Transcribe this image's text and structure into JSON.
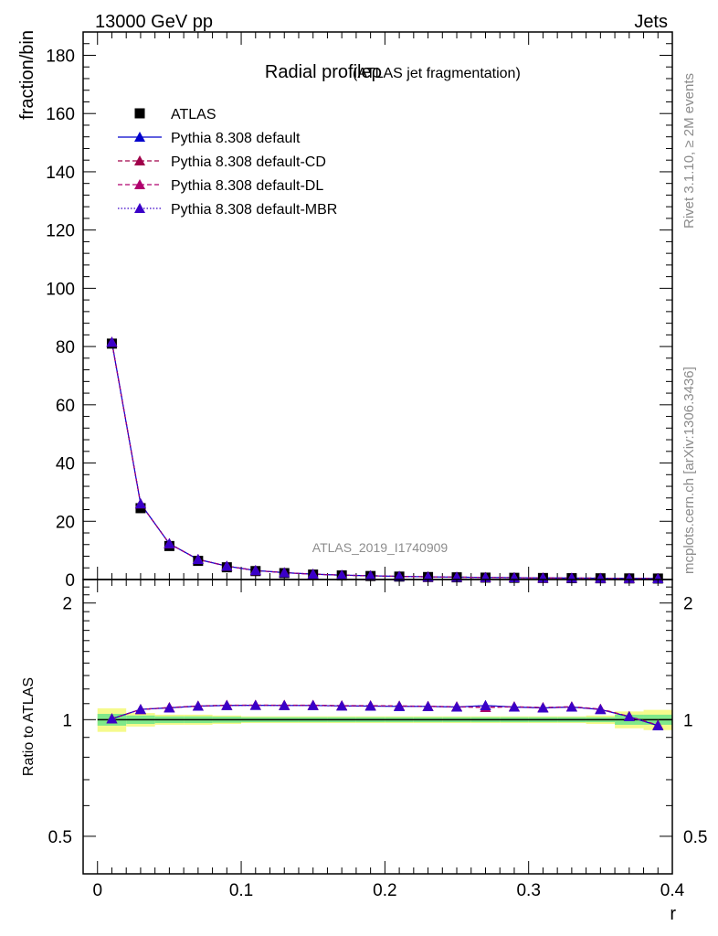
{
  "header": {
    "left": "13000 GeV pp",
    "right": "Jets"
  },
  "side": {
    "rivet": "Rivet 3.1.10, ≥ 2M events",
    "mcplots": "mcplots.cern.ch [arXiv:1306.3436]"
  },
  "watermark": "ATLAS_2019_I1740909",
  "colors": {
    "data": "#000000",
    "default": "#0000cc",
    "cd": "#a0004a",
    "dl": "#b0006e",
    "mbr": "#3a00c8",
    "band_inner": "#7fe88a",
    "band_outer": "#f5fa8c"
  },
  "chart_data": [
    {
      "type": "line",
      "title": "Radial profileρ",
      "subtitle": "(ATLAS jet fragmentation)",
      "ylabel": "fraction/bin",
      "xlim": [
        -0.01,
        0.4
      ],
      "ylim": [
        0,
        188
      ],
      "yticks": [
        0,
        20,
        40,
        60,
        80,
        100,
        120,
        140,
        160,
        180
      ],
      "x": [
        0.01,
        0.03,
        0.05,
        0.07,
        0.09,
        0.11,
        0.13,
        0.15,
        0.17,
        0.19,
        0.21,
        0.23,
        0.25,
        0.27,
        0.29,
        0.31,
        0.33,
        0.35,
        0.37,
        0.39
      ],
      "series": [
        {
          "name": "ATLAS",
          "values": [
            81.0,
            24.5,
            11.5,
            6.4,
            4.2,
            2.9,
            2.2,
            1.7,
            1.4,
            1.2,
            1.0,
            0.85,
            0.75,
            0.65,
            0.58,
            0.52,
            0.46,
            0.42,
            0.38,
            0.34
          ]
        },
        {
          "name": "Pythia 8.308 default",
          "values": [
            81.5,
            26.0,
            12.3,
            6.9,
            4.6,
            3.1,
            2.35,
            1.85,
            1.5,
            1.3,
            1.08,
            0.92,
            0.81,
            0.71,
            0.63,
            0.56,
            0.5,
            0.45,
            0.39,
            0.33
          ]
        },
        {
          "name": "Pythia 8.308 default-CD",
          "values": [
            81.5,
            26.0,
            12.3,
            6.9,
            4.6,
            3.1,
            2.35,
            1.85,
            1.5,
            1.3,
            1.08,
            0.92,
            0.81,
            0.71,
            0.63,
            0.56,
            0.5,
            0.45,
            0.39,
            0.33
          ]
        },
        {
          "name": "Pythia 8.308 default-DL",
          "values": [
            81.5,
            26.0,
            12.3,
            6.9,
            4.6,
            3.1,
            2.35,
            1.85,
            1.5,
            1.3,
            1.08,
            0.92,
            0.81,
            0.71,
            0.63,
            0.56,
            0.5,
            0.45,
            0.39,
            0.33
          ]
        },
        {
          "name": "Pythia 8.308 default-MBR",
          "values": [
            81.5,
            26.0,
            12.3,
            6.9,
            4.6,
            3.1,
            2.35,
            1.85,
            1.5,
            1.3,
            1.08,
            0.92,
            0.81,
            0.71,
            0.63,
            0.56,
            0.5,
            0.45,
            0.39,
            0.33
          ]
        }
      ]
    },
    {
      "type": "line",
      "ylabel": "Ratio to ATLAS",
      "xlabel": "r",
      "xlim": [
        -0.01,
        0.4
      ],
      "ylim": [
        0.4,
        2.3
      ],
      "yscale": "log",
      "yticks": [
        0.5,
        1,
        2
      ],
      "xticks": [
        0,
        0.1,
        0.2,
        0.3,
        0.4
      ],
      "x": [
        0.01,
        0.03,
        0.05,
        0.07,
        0.09,
        0.11,
        0.13,
        0.15,
        0.17,
        0.19,
        0.21,
        0.23,
        0.25,
        0.27,
        0.29,
        0.31,
        0.33,
        0.35,
        0.37,
        0.39
      ],
      "band_edges": [
        0.0,
        0.02,
        0.04,
        0.06,
        0.08,
        0.1,
        0.12,
        0.14,
        0.16,
        0.18,
        0.2,
        0.22,
        0.24,
        0.26,
        0.28,
        0.3,
        0.32,
        0.34,
        0.36,
        0.38,
        0.4
      ],
      "band_inner": [
        0.035,
        0.025,
        0.02,
        0.02,
        0.018,
        0.015,
        0.015,
        0.015,
        0.015,
        0.015,
        0.015,
        0.015,
        0.015,
        0.015,
        0.015,
        0.015,
        0.015,
        0.015,
        0.03,
        0.03
      ],
      "band_outer": [
        0.07,
        0.04,
        0.03,
        0.03,
        0.025,
        0.02,
        0.02,
        0.02,
        0.02,
        0.02,
        0.02,
        0.02,
        0.02,
        0.02,
        0.02,
        0.02,
        0.02,
        0.025,
        0.05,
        0.06
      ],
      "series": [
        {
          "name": "Pythia 8.308 default",
          "values": [
            1.005,
            1.063,
            1.073,
            1.084,
            1.088,
            1.089,
            1.088,
            1.088,
            1.085,
            1.084,
            1.082,
            1.082,
            1.078,
            1.088,
            1.078,
            1.072,
            1.078,
            1.062,
            1.018,
            0.965
          ]
        },
        {
          "name": "Pythia 8.308 default-CD",
          "values": [
            1.006,
            1.062,
            1.075,
            1.085,
            1.09,
            1.09,
            1.09,
            1.09,
            1.087,
            1.087,
            1.085,
            1.083,
            1.08,
            1.075,
            1.08,
            1.075,
            1.08,
            1.065,
            1.02,
            0.968
          ]
        },
        {
          "name": "Pythia 8.308 default-DL",
          "values": [
            1.005,
            1.063,
            1.074,
            1.084,
            1.089,
            1.09,
            1.089,
            1.089,
            1.086,
            1.086,
            1.084,
            1.082,
            1.079,
            1.076,
            1.079,
            1.074,
            1.079,
            1.064,
            1.019,
            0.967
          ]
        },
        {
          "name": "Pythia 8.308 default-MBR",
          "values": [
            1.005,
            1.063,
            1.073,
            1.084,
            1.088,
            1.089,
            1.088,
            1.088,
            1.085,
            1.085,
            1.083,
            1.082,
            1.078,
            1.087,
            1.078,
            1.073,
            1.078,
            1.063,
            1.018,
            0.966
          ]
        }
      ]
    }
  ]
}
